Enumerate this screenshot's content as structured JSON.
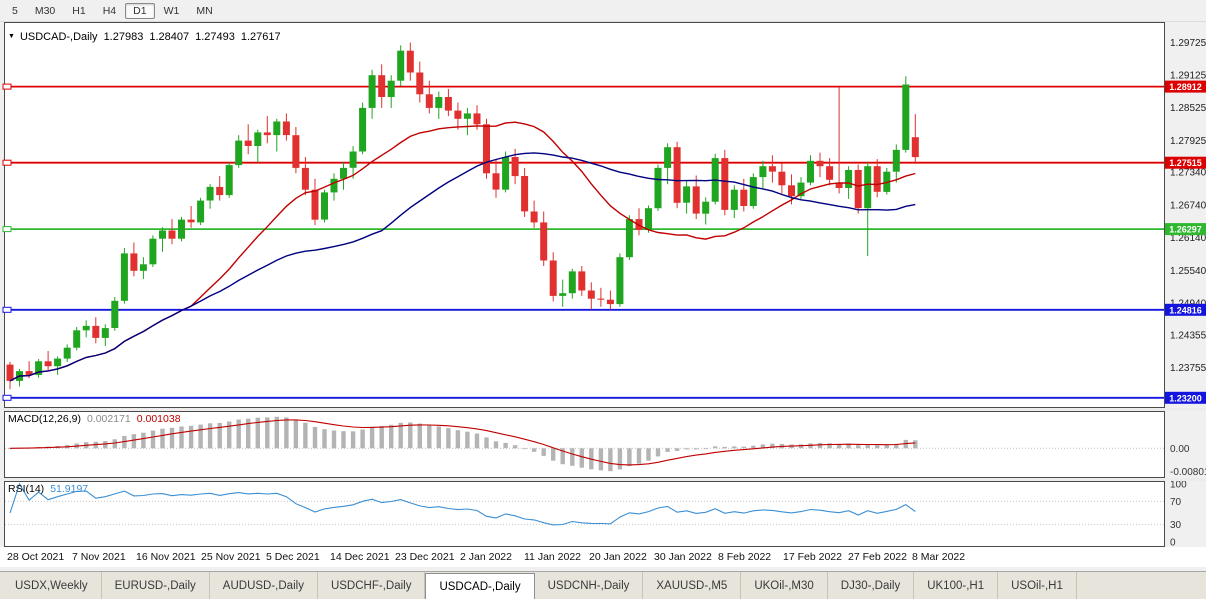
{
  "toolbar": {
    "timeframes": [
      {
        "label": "5",
        "active": false
      },
      {
        "label": "M30",
        "active": false
      },
      {
        "label": "H1",
        "active": false
      },
      {
        "label": "H4",
        "active": false
      },
      {
        "label": "D1",
        "active": true
      },
      {
        "label": "W1",
        "active": false
      },
      {
        "label": "MN",
        "active": false
      }
    ]
  },
  "chart": {
    "title": {
      "symbol": "USDCAD-,Daily",
      "open": "1.27983",
      "high": "1.28407",
      "low": "1.27493",
      "close": "1.27617"
    },
    "axis_labels": [
      "1.29725",
      "1.29125",
      "1.28525",
      "1.27925",
      "1.27340",
      "1.26740",
      "1.26140",
      "1.25540",
      "1.24940",
      "1.24355",
      "1.23755"
    ],
    "hlines": [
      {
        "value": 1.28912,
        "label": "1.28912",
        "color": "#dd0000"
      },
      {
        "value": 1.27515,
        "label": "1.27515",
        "color": "#dd0000"
      },
      {
        "value": 1.26297,
        "label": "1.26297",
        "color": "#2eb82e"
      },
      {
        "value": 1.24816,
        "label": "1.24816",
        "color": "#1414e0"
      },
      {
        "value": 1.232,
        "label": "1.23200",
        "color": "#1414e0"
      }
    ],
    "dates": [
      "28 Oct 2021",
      "7 Nov 2021",
      "16 Nov 2021",
      "25 Nov 2021",
      "5 Dec 2021",
      "14 Dec 2021",
      "23 Dec 2021",
      "2 Jan 2022",
      "11 Jan 2022",
      "20 Jan 2022",
      "30 Jan 2022",
      "8 Feb 2022",
      "17 Feb 2022",
      "27 Feb 2022",
      "8 Mar 2022"
    ]
  },
  "macd_panel": {
    "name": "MACD(12,26,9)",
    "value1": "0.002171",
    "value2": "0.001038",
    "axis_zero": "0.00",
    "axis_min": "-0.00801"
  },
  "rsi_panel": {
    "name": "RSI(14)",
    "value": "51.9197",
    "axis": [
      "100",
      "70",
      "30",
      "0"
    ]
  },
  "tabs": [
    {
      "label": "USDX,Weekly",
      "active": false
    },
    {
      "label": "EURUSD-,Daily",
      "active": false
    },
    {
      "label": "AUDUSD-,Daily",
      "active": false
    },
    {
      "label": "USDCHF-,Daily",
      "active": false
    },
    {
      "label": "USDCAD-,Daily",
      "active": true
    },
    {
      "label": "USDCNH-,Daily",
      "active": false
    },
    {
      "label": "XAUUSD-,M5",
      "active": false
    },
    {
      "label": "UKOil-,M30",
      "active": false
    },
    {
      "label": "DJ30-,Daily",
      "active": false
    },
    {
      "label": "UK100-,H1",
      "active": false
    },
    {
      "label": "USOil-,H1",
      "active": false
    }
  ],
  "colors": {
    "bull": "#1fa51f",
    "bear": "#e03030",
    "ma_fast": "#c00000",
    "ma_slow": "#000080",
    "macd_hist": "#b4b4b4",
    "macd_signal": "#c00000",
    "rsi": "#3b8fd4"
  },
  "chart_data": {
    "type": "candlestick",
    "symbol": "USDCAD",
    "timeframe": "Daily",
    "title": "USDCAD-,Daily 1.27983 1.28407 1.27493 1.27617",
    "y_range": [
      1.2305,
      1.2995
    ],
    "x_labels": [
      "28 Oct 2021",
      "7 Nov 2021",
      "16 Nov 2021",
      "25 Nov 2021",
      "5 Dec 2021",
      "14 Dec 2021",
      "23 Dec 2021",
      "2 Jan 2022",
      "11 Jan 2022",
      "20 Jan 2022",
      "30 Jan 2022",
      "8 Feb 2022",
      "17 Feb 2022",
      "27 Feb 2022",
      "8 Mar 2022"
    ],
    "horizontal_levels": [
      1.28912,
      1.27515,
      1.26297,
      1.24816,
      1.232
    ],
    "overlays": [
      {
        "name": "ma-fast",
        "type": "sma",
        "period": 20,
        "color": "#c00000"
      },
      {
        "name": "ma-slow",
        "type": "sma",
        "period": 40,
        "color": "#000080"
      }
    ],
    "indicators": [
      {
        "name": "MACD",
        "params": [
          12,
          26,
          9
        ],
        "current_main": 0.002171,
        "current_signal": 0.001038,
        "axis": [
          "0.00",
          "-0.00801"
        ]
      },
      {
        "name": "RSI",
        "params": [
          14
        ],
        "current": 51.9197,
        "levels": [
          70,
          30
        ],
        "axis": [
          100,
          70,
          30,
          0
        ]
      }
    ],
    "candles": [
      [
        1.2381,
        1.2386,
        1.2336,
        1.2351
      ],
      [
        1.2351,
        1.2373,
        1.2341,
        1.2369
      ],
      [
        1.2369,
        1.2387,
        1.2356,
        1.2362
      ],
      [
        1.2362,
        1.2391,
        1.2357,
        1.2387
      ],
      [
        1.2387,
        1.2406,
        1.2371,
        1.2378
      ],
      [
        1.2378,
        1.2396,
        1.2362,
        1.2392
      ],
      [
        1.2392,
        1.2418,
        1.2386,
        1.2412
      ],
      [
        1.2412,
        1.245,
        1.2407,
        1.2444
      ],
      [
        1.2444,
        1.2462,
        1.2431,
        1.2452
      ],
      [
        1.2452,
        1.2468,
        1.242,
        1.243
      ],
      [
        1.243,
        1.2455,
        1.2415,
        1.2448
      ],
      [
        1.2448,
        1.2505,
        1.2443,
        1.2498
      ],
      [
        1.2498,
        1.2595,
        1.2493,
        1.2585
      ],
      [
        1.2585,
        1.2605,
        1.2543,
        1.2553
      ],
      [
        1.2553,
        1.2578,
        1.2538,
        1.2565
      ],
      [
        1.2565,
        1.2618,
        1.256,
        1.2612
      ],
      [
        1.2612,
        1.2633,
        1.2588,
        1.2627
      ],
      [
        1.2627,
        1.2648,
        1.2602,
        1.2612
      ],
      [
        1.2612,
        1.2652,
        1.2607,
        1.2647
      ],
      [
        1.2647,
        1.2672,
        1.2632,
        1.2642
      ],
      [
        1.2642,
        1.2687,
        1.2637,
        1.2682
      ],
      [
        1.2682,
        1.2712,
        1.2667,
        1.2707
      ],
      [
        1.2707,
        1.2727,
        1.2682,
        1.2692
      ],
      [
        1.2692,
        1.2752,
        1.2687,
        1.2747
      ],
      [
        1.2747,
        1.2802,
        1.2742,
        1.2792
      ],
      [
        1.2792,
        1.2822,
        1.2767,
        1.2782
      ],
      [
        1.2782,
        1.2812,
        1.2752,
        1.2807
      ],
      [
        1.2807,
        1.2837,
        1.2787,
        1.2802
      ],
      [
        1.2802,
        1.2832,
        1.2772,
        1.2827
      ],
      [
        1.2827,
        1.2842,
        1.2792,
        1.2802
      ],
      [
        1.2802,
        1.2817,
        1.2732,
        1.2742
      ],
      [
        1.2742,
        1.2762,
        1.2692,
        1.2702
      ],
      [
        1.2702,
        1.2722,
        1.2637,
        1.2647
      ],
      [
        1.2647,
        1.2702,
        1.2642,
        1.2697
      ],
      [
        1.2697,
        1.2732,
        1.2682,
        1.2722
      ],
      [
        1.2722,
        1.2752,
        1.2702,
        1.2742
      ],
      [
        1.2742,
        1.2782,
        1.2722,
        1.2772
      ],
      [
        1.2772,
        1.2862,
        1.2767,
        1.2852
      ],
      [
        1.2852,
        1.2922,
        1.2832,
        1.2912
      ],
      [
        1.2912,
        1.2932,
        1.2852,
        1.2872
      ],
      [
        1.2872,
        1.2912,
        1.2852,
        1.2902
      ],
      [
        1.2902,
        1.2967,
        1.2892,
        1.2957
      ],
      [
        1.2957,
        1.2972,
        1.2902,
        1.2917
      ],
      [
        1.2917,
        1.2937,
        1.2862,
        1.2877
      ],
      [
        1.2877,
        1.2902,
        1.2842,
        1.2852
      ],
      [
        1.2852,
        1.2882,
        1.2832,
        1.2872
      ],
      [
        1.2872,
        1.2887,
        1.2837,
        1.2847
      ],
      [
        1.2847,
        1.2862,
        1.2812,
        1.2832
      ],
      [
        1.2832,
        1.2852,
        1.2802,
        1.2842
      ],
      [
        1.2842,
        1.2857,
        1.2812,
        1.2822
      ],
      [
        1.2822,
        1.2832,
        1.2722,
        1.2732
      ],
      [
        1.2732,
        1.2757,
        1.2687,
        1.2702
      ],
      [
        1.2702,
        1.2772,
        1.2697,
        1.2762
      ],
      [
        1.2762,
        1.2777,
        1.2712,
        1.2727
      ],
      [
        1.2727,
        1.2742,
        1.2652,
        1.2662
      ],
      [
        1.2662,
        1.2682,
        1.2632,
        1.2642
      ],
      [
        1.2642,
        1.2662,
        1.2562,
        1.2572
      ],
      [
        1.2572,
        1.2587,
        1.2497,
        1.2507
      ],
      [
        1.2507,
        1.2537,
        1.2487,
        1.2512
      ],
      [
        1.2512,
        1.2557,
        1.2502,
        1.2552
      ],
      [
        1.2552,
        1.2562,
        1.2507,
        1.2517
      ],
      [
        1.2517,
        1.2532,
        1.2482,
        1.2502
      ],
      [
        1.2502,
        1.2522,
        1.2487,
        1.25
      ],
      [
        1.25,
        1.2517,
        1.2482,
        1.2492
      ],
      [
        1.2492,
        1.2585,
        1.2487,
        1.2578
      ],
      [
        1.2578,
        1.2655,
        1.2573,
        1.2648
      ],
      [
        1.2648,
        1.2668,
        1.2618,
        1.2628
      ],
      [
        1.2628,
        1.2673,
        1.2623,
        1.2668
      ],
      [
        1.2668,
        1.2748,
        1.2663,
        1.2742
      ],
      [
        1.2742,
        1.2787,
        1.2712,
        1.278
      ],
      [
        1.278,
        1.279,
        1.2668,
        1.2678
      ],
      [
        1.2678,
        1.2718,
        1.2658,
        1.2708
      ],
      [
        1.2708,
        1.2728,
        1.2648,
        1.2658
      ],
      [
        1.2658,
        1.2688,
        1.2638,
        1.268
      ],
      [
        1.268,
        1.2768,
        1.2675,
        1.276
      ],
      [
        1.276,
        1.2775,
        1.2655,
        1.2665
      ],
      [
        1.2665,
        1.271,
        1.265,
        1.2702
      ],
      [
        1.2702,
        1.2722,
        1.2662,
        1.2672
      ],
      [
        1.2672,
        1.2732,
        1.2667,
        1.2725
      ],
      [
        1.2725,
        1.2755,
        1.2705,
        1.2745
      ],
      [
        1.2745,
        1.2765,
        1.2715,
        1.2735
      ],
      [
        1.2735,
        1.275,
        1.2695,
        1.271
      ],
      [
        1.271,
        1.273,
        1.2675,
        1.269
      ],
      [
        1.269,
        1.2725,
        1.2685,
        1.2715
      ],
      [
        1.2715,
        1.2765,
        1.271,
        1.2755
      ],
      [
        1.2755,
        1.277,
        1.2725,
        1.2745
      ],
      [
        1.2745,
        1.276,
        1.271,
        1.272
      ],
      [
        1.2715,
        1.289,
        1.2695,
        1.2705
      ],
      [
        1.2705,
        1.2745,
        1.2685,
        1.2738
      ],
      [
        1.2738,
        1.2748,
        1.2658,
        1.2668
      ],
      [
        1.2668,
        1.2752,
        1.258,
        1.2745
      ],
      [
        1.2745,
        1.2758,
        1.2688,
        1.2698
      ],
      [
        1.2698,
        1.2742,
        1.2693,
        1.2735
      ],
      [
        1.2735,
        1.2785,
        1.2715,
        1.2775
      ],
      [
        1.2775,
        1.291,
        1.277,
        1.2895
      ],
      [
        1.27983,
        1.28407,
        1.27493,
        1.27617
      ]
    ]
  }
}
